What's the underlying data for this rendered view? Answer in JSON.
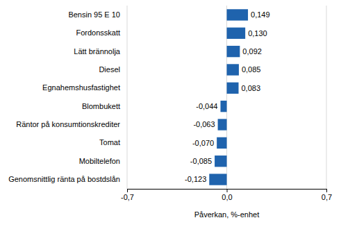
{
  "chart_data": {
    "type": "bar",
    "orientation": "horizontal",
    "x_label": "Påverkan, %-enhet",
    "categories": [
      "Bensin 95 E 10",
      "Fordonsskatt",
      "Lätt brännolja",
      "Diesel",
      "Egnahemshusfastighet",
      "Blombukett",
      "Räntor på konsumtionskrediter",
      "Tomat",
      "Mobiltelefon",
      "Genomsnittlig ränta på bostdslån"
    ],
    "values": [
      0.149,
      0.13,
      0.092,
      0.085,
      0.083,
      -0.044,
      -0.063,
      -0.07,
      -0.085,
      -0.123
    ],
    "value_labels": [
      "0,149",
      "0,130",
      "0,092",
      "0,085",
      "0,083",
      "-0,044",
      "-0,063",
      "-0,070",
      "-0,085",
      "-0,123"
    ],
    "data_labels": true,
    "color": "#1f63ad",
    "xlim": [
      -0.7,
      0.7
    ],
    "xticks": [
      {
        "value": -0.7,
        "label": "-0,7"
      },
      {
        "value": 0,
        "label": "0,0"
      },
      {
        "value": 0.7,
        "label": "0,7"
      }
    ],
    "grid": true
  }
}
